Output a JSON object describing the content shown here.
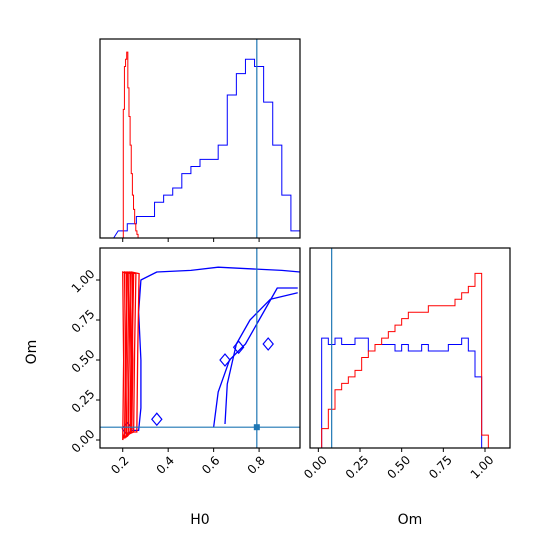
{
  "chart_data": [
    {
      "type": "histogram",
      "panel": "H0 marginal",
      "xlim": [
        0.1,
        0.98
      ],
      "truth": 0.79,
      "series": [
        {
          "color": "#0000ff",
          "x": [
            0.14,
            0.2,
            0.24,
            0.28,
            0.32,
            0.36,
            0.4,
            0.44,
            0.48,
            0.52,
            0.56,
            0.6,
            0.64,
            0.68,
            0.72,
            0.76,
            0.8,
            0.84,
            0.88,
            0.92,
            0.96
          ],
          "y": [
            0,
            1,
            2,
            3,
            3,
            5,
            6,
            7,
            9,
            10,
            11,
            11,
            13,
            20,
            23,
            25,
            24,
            19,
            13,
            6,
            1
          ]
        },
        {
          "color": "#ff0000",
          "x": [
            0.2,
            0.205,
            0.21,
            0.215,
            0.22,
            0.225,
            0.23,
            0.235,
            0.24,
            0.245,
            0.25,
            0.255,
            0.26,
            0.265,
            0.27
          ],
          "y": [
            0,
            18,
            24,
            25,
            26,
            21,
            17,
            13,
            9,
            6,
            4,
            2,
            1,
            0.5,
            0
          ]
        }
      ]
    },
    {
      "type": "contour",
      "panel": "H0 vs Om",
      "xlabel": "H0",
      "ylabel": "Om",
      "xlim": [
        0.1,
        0.98
      ],
      "ylim": [
        -0.05,
        1.2
      ],
      "xticks": [
        "0.2",
        "0.4",
        "0.6",
        "0.8"
      ],
      "yticks": [
        "0.00",
        "0.25",
        "0.50",
        "0.75",
        "1.00"
      ],
      "truth": {
        "x": 0.79,
        "y": 0.08
      },
      "blue_levels": [
        [
          [
            0.24,
            0.06
          ],
          [
            0.27,
            0.06
          ],
          [
            0.28,
            0.2
          ],
          [
            0.28,
            0.5
          ],
          [
            0.27,
            0.8
          ],
          [
            0.28,
            1.0
          ],
          [
            0.35,
            1.05
          ],
          [
            0.5,
            1.06
          ],
          [
            0.62,
            1.08
          ],
          [
            0.76,
            1.07
          ],
          [
            0.9,
            1.06
          ],
          [
            0.98,
            1.05
          ]
        ],
        [
          [
            0.65,
            0.1
          ],
          [
            0.66,
            0.35
          ],
          [
            0.7,
            0.6
          ],
          [
            0.76,
            0.75
          ],
          [
            0.85,
            0.88
          ],
          [
            0.97,
            0.92
          ]
        ],
        [
          [
            0.6,
            0.08
          ],
          [
            0.62,
            0.3
          ],
          [
            0.67,
            0.5
          ],
          [
            0.74,
            0.6
          ],
          [
            0.8,
            0.75
          ],
          [
            0.88,
            0.95
          ],
          [
            0.97,
            0.95
          ]
        ]
      ],
      "blue_islands": [
        [
          0.71,
          0.58
        ],
        [
          0.65,
          0.5
        ],
        [
          0.35,
          0.13
        ],
        [
          0.22,
          0.07
        ],
        [
          0.84,
          0.6
        ]
      ],
      "red_x_range": [
        0.2,
        0.27
      ],
      "red_y_range": [
        0.0,
        1.05
      ]
    },
    {
      "type": "histogram",
      "panel": "Om marginal",
      "xlabel": "Om",
      "xlim": [
        -0.05,
        1.15
      ],
      "xticks": [
        "0.00",
        "0.25",
        "0.50",
        "0.75",
        "1.00"
      ],
      "truth": 0.08,
      "series": [
        {
          "color": "#0000ff",
          "x": [
            0.0,
            0.04,
            0.08,
            0.12,
            0.16,
            0.2,
            0.24,
            0.28,
            0.32,
            0.36,
            0.4,
            0.44,
            0.48,
            0.52,
            0.56,
            0.6,
            0.64,
            0.68,
            0.72,
            0.76,
            0.8,
            0.84,
            0.88,
            0.92,
            0.96,
            1.0,
            1.04
          ],
          "y": [
            0,
            17,
            16,
            17,
            16,
            16,
            17,
            17,
            15,
            16,
            16,
            16,
            15,
            16,
            15,
            15,
            16,
            15,
            15,
            15,
            16,
            16,
            17,
            15,
            11,
            0,
            0
          ]
        },
        {
          "color": "#ff0000",
          "x": [
            0.0,
            0.04,
            0.08,
            0.12,
            0.16,
            0.2,
            0.24,
            0.28,
            0.32,
            0.36,
            0.4,
            0.44,
            0.48,
            0.52,
            0.56,
            0.6,
            0.64,
            0.68,
            0.72,
            0.76,
            0.8,
            0.84,
            0.88,
            0.92,
            0.96,
            1.0,
            1.04
          ],
          "y": [
            0,
            3,
            6,
            9,
            10,
            11,
            12,
            14,
            15,
            16,
            17,
            18,
            19,
            20,
            21,
            21,
            21,
            22,
            22,
            22,
            22,
            23,
            24,
            25,
            27,
            2,
            0
          ]
        }
      ]
    }
  ]
}
